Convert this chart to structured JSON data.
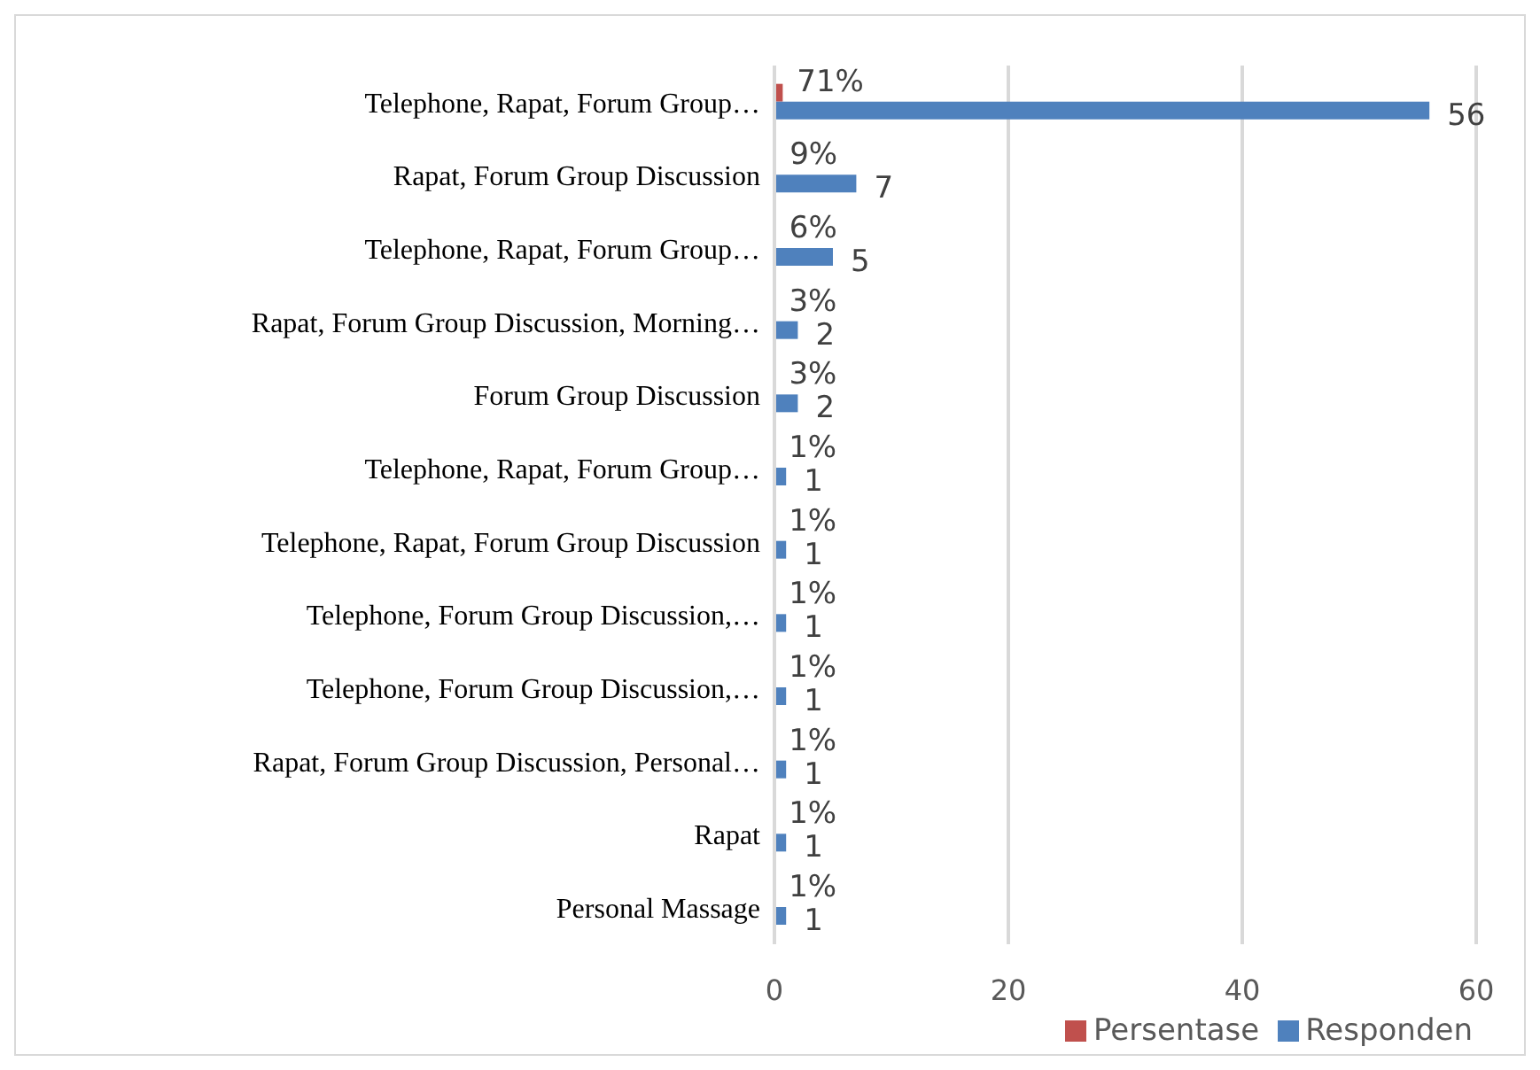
{
  "chart_data": {
    "type": "bar",
    "orientation": "horizontal",
    "categories": [
      "Telephone, Rapat, Forum Group…",
      "Rapat, Forum Group Discussion",
      "Telephone, Rapat, Forum Group…",
      "Rapat, Forum Group Discussion, Morning…",
      "Forum Group Discussion",
      "Telephone, Rapat, Forum Group…",
      "Telephone, Rapat, Forum Group Discussion",
      "Telephone, Forum Group Discussion,…",
      "Telephone, Forum Group Discussion,…",
      "Rapat, Forum Group Discussion, Personal…",
      "Rapat",
      "Personal Massage"
    ],
    "series": [
      {
        "name": "Persentase",
        "color": "#c0504d",
        "values": [
          0.71,
          0.09,
          0.06,
          0.03,
          0.03,
          0.01,
          0.01,
          0.01,
          0.01,
          0.01,
          0.01,
          0.01
        ],
        "value_labels": [
          "71%",
          "9%",
          "6%",
          "3%",
          "3%",
          "1%",
          "1%",
          "1%",
          "1%",
          "1%",
          "1%",
          "1%"
        ]
      },
      {
        "name": "Responden",
        "color": "#4f81bd",
        "values": [
          56,
          7,
          5,
          2,
          2,
          1,
          1,
          1,
          1,
          1,
          1,
          1
        ],
        "value_labels": [
          "56",
          "7",
          "5",
          "2",
          "2",
          "1",
          "1",
          "1",
          "1",
          "1",
          "1",
          "1"
        ]
      }
    ],
    "xlim": [
      0,
      60
    ],
    "xticks": [
      0,
      20,
      40,
      60
    ],
    "grid": "x",
    "legend": "bottom"
  }
}
